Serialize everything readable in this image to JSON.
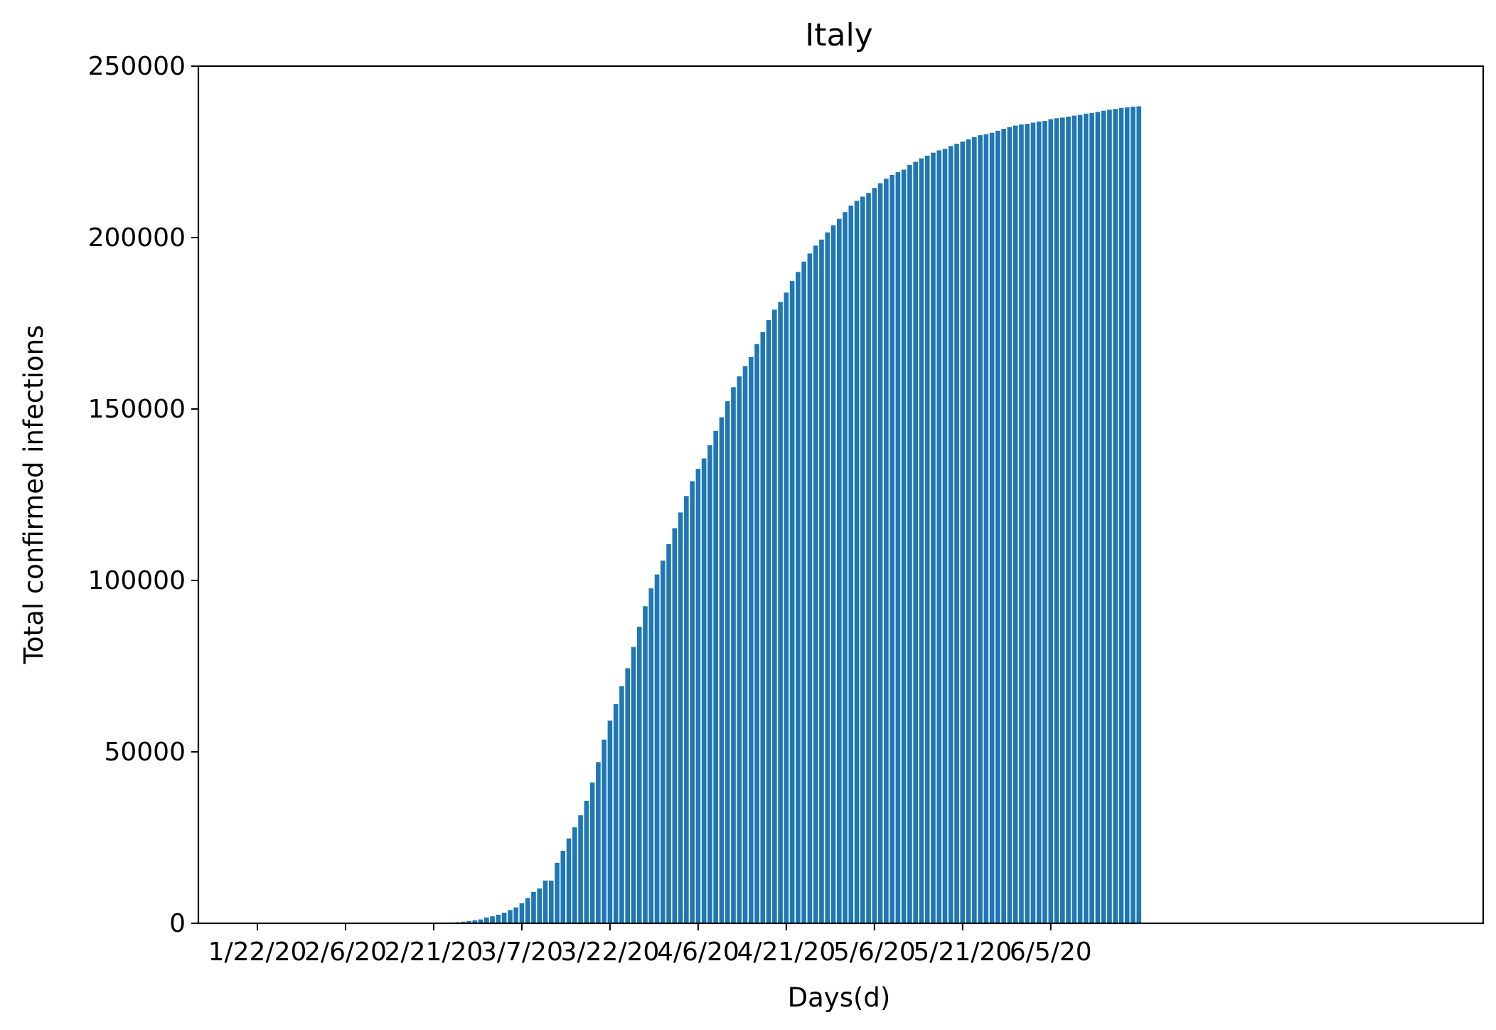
{
  "chart_data": {
    "type": "bar",
    "title": "Italy",
    "xlabel": "Days(d)",
    "ylabel": "Total confirmed infections",
    "ylim": [
      0,
      250000
    ],
    "yticks": [
      0,
      50000,
      100000,
      150000,
      200000,
      250000
    ],
    "xtick_labels": [
      "1/22/20",
      "2/6/20",
      "2/21/20",
      "3/7/20",
      "3/22/20",
      "4/6/20",
      "4/21/20",
      "5/6/20",
      "5/21/20",
      "6/5/20"
    ],
    "xtick_interval_days": 15,
    "start_date": "1/22/20",
    "bar_color": "#1f77b4",
    "grid": false,
    "legend": "none",
    "series": [
      {
        "values": [
          0,
          0,
          0,
          0,
          0,
          0,
          0,
          0,
          0,
          2,
          2,
          2,
          2,
          2,
          2,
          2,
          3,
          3,
          3,
          3,
          3,
          3,
          3,
          3,
          3,
          3,
          3,
          3,
          3,
          3,
          20,
          62,
          155,
          229,
          322,
          453,
          655,
          888,
          1128,
          1694,
          2036,
          2502,
          3089,
          3858,
          4636,
          5883,
          7375,
          9172,
          10149,
          12462,
          12462,
          17660,
          21157,
          24747,
          27980,
          31506,
          35713,
          41035,
          47021,
          53578,
          59138,
          63927,
          69176,
          74386,
          80589,
          86498,
          92472,
          97689,
          101739,
          105792,
          110574,
          115242,
          119827,
          124632,
          128948,
          132547,
          135586,
          139422,
          143626,
          147577,
          152271,
          156363,
          159516,
          162488,
          165155,
          168941,
          172434,
          175925,
          178972,
          181228,
          183957,
          187327,
          189973,
          192994,
          195351,
          197675,
          199414,
          201505,
          203591,
          205463,
          207428,
          209328,
          210717,
          211938,
          213013,
          214457,
          215858,
          217185,
          218268,
          219070,
          219814,
          221216,
          222104,
          223096,
          223885,
          224760,
          225435,
          225886,
          226699,
          227364,
          228006,
          228658,
          229327,
          229858,
          230158,
          230555,
          231139,
          231732,
          232248,
          232664,
          232997,
          233197,
          233515,
          233836,
          234013,
          234531,
          234801,
          234998,
          235278,
          235561,
          235763,
          236142,
          236305,
          236651,
          236989,
          237290,
          237500,
          237828,
          238011,
          238159,
          238275
        ]
      }
    ]
  }
}
